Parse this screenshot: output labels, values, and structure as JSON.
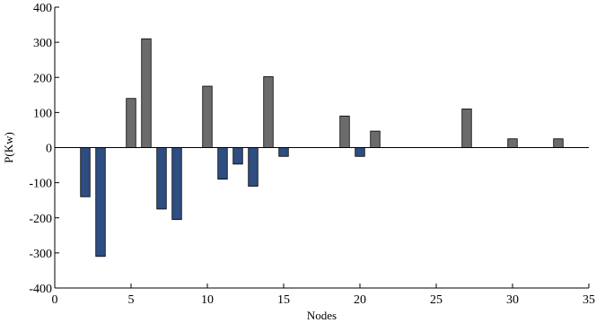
{
  "chart_data": {
    "type": "bar",
    "title": "",
    "xlabel": "Nodes",
    "ylabel": "P(Kw)",
    "xlim": [
      0,
      35
    ],
    "ylim": [
      -400,
      400
    ],
    "xticks": [
      0,
      5,
      10,
      15,
      20,
      25,
      30,
      35
    ],
    "yticks": [
      -400,
      -300,
      -200,
      -100,
      0,
      100,
      200,
      300,
      400
    ],
    "grid": false,
    "colors": {
      "positive": "#6b6b6b",
      "negative": "#2e4e82"
    },
    "x": [
      1,
      2,
      3,
      4,
      5,
      6,
      7,
      8,
      9,
      10,
      11,
      12,
      13,
      14,
      15,
      16,
      17,
      18,
      19,
      20,
      21,
      22,
      23,
      24,
      25,
      26,
      27,
      28,
      29,
      30,
      31,
      32,
      33
    ],
    "values": [
      0,
      -140,
      -310,
      0,
      140,
      310,
      -175,
      -205,
      0,
      175,
      -90,
      -47,
      -110,
      202,
      -25,
      0,
      0,
      0,
      90,
      -25,
      47,
      0,
      0,
      0,
      0,
      0,
      110,
      0,
      0,
      25,
      0,
      0,
      25
    ]
  }
}
